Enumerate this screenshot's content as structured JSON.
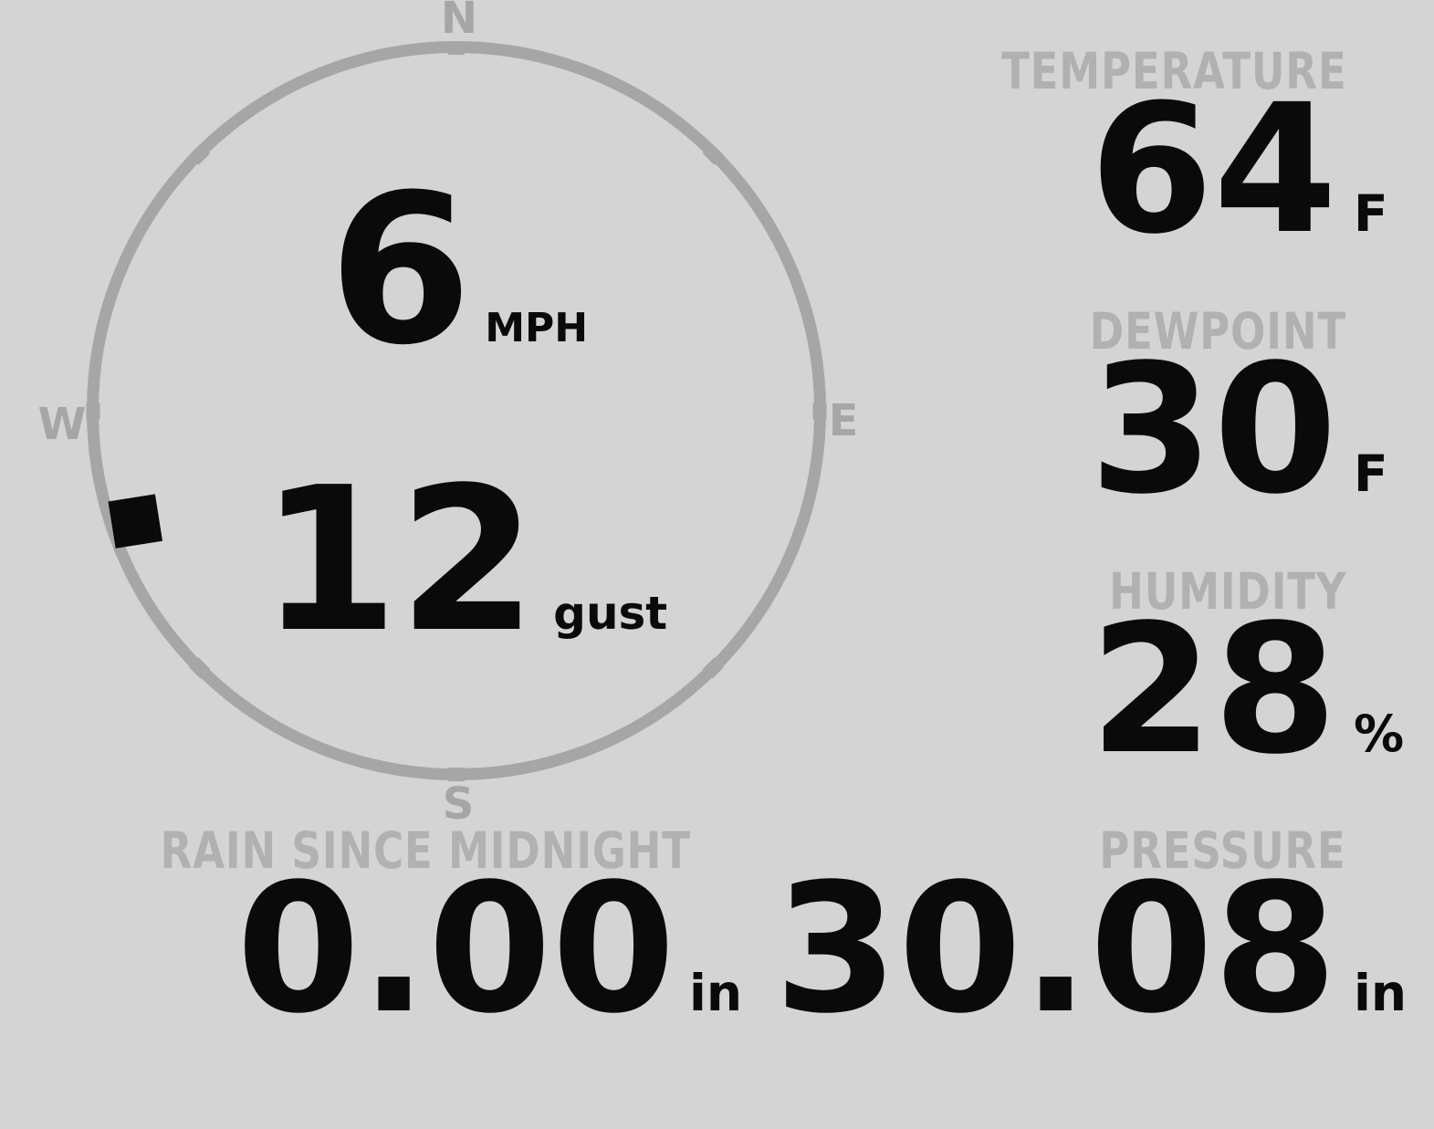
{
  "colors": {
    "background": "#d4d4d4",
    "value_text": "#0a0a0a",
    "label_gray": "#b1b1b1",
    "compass_gray": "#a6a6a6"
  },
  "compass": {
    "cardinals": {
      "north": "N",
      "east": "E",
      "south": "S",
      "west": "W"
    },
    "wind_speed": "6",
    "wind_speed_unit": "MPH",
    "wind_gust": "12",
    "wind_gust_unit": "gust",
    "wind_direction_deg": 251
  },
  "metrics": {
    "temperature": {
      "label": "TEMPERATURE",
      "value": "64",
      "unit": "F"
    },
    "dewpoint": {
      "label": "DEWPOINT",
      "value": "30",
      "unit": "F"
    },
    "humidity": {
      "label": "HUMIDITY",
      "value": "28",
      "unit": "%"
    },
    "pressure": {
      "label": "PRESSURE",
      "value": "30.08",
      "unit": "in"
    },
    "rain_since_midnight": {
      "label": "RAIN SINCE MIDNIGHT",
      "value": "0.00",
      "unit": "in"
    }
  }
}
